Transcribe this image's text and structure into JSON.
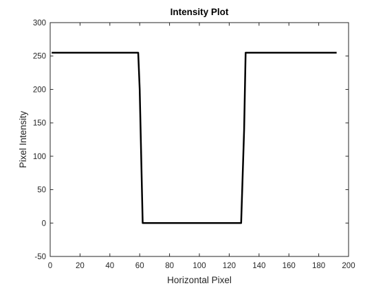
{
  "chart_data": {
    "type": "line",
    "title": "Intensity Plot",
    "xlabel": "Horizontal Pixel",
    "ylabel": "Pixel Intensity",
    "xlim": [
      0,
      200
    ],
    "ylim": [
      -50,
      300
    ],
    "xticks": [
      0,
      20,
      40,
      60,
      80,
      100,
      120,
      140,
      160,
      180,
      200
    ],
    "yticks": [
      -50,
      0,
      50,
      100,
      150,
      200,
      250,
      300
    ],
    "grid": false,
    "legend": "none",
    "line_color": "#000000",
    "series": [
      {
        "x": [
          1,
          59,
          60,
          62,
          128,
          130,
          131,
          192
        ],
        "y": [
          255,
          255,
          200,
          0,
          0,
          140,
          255,
          255
        ]
      }
    ]
  }
}
